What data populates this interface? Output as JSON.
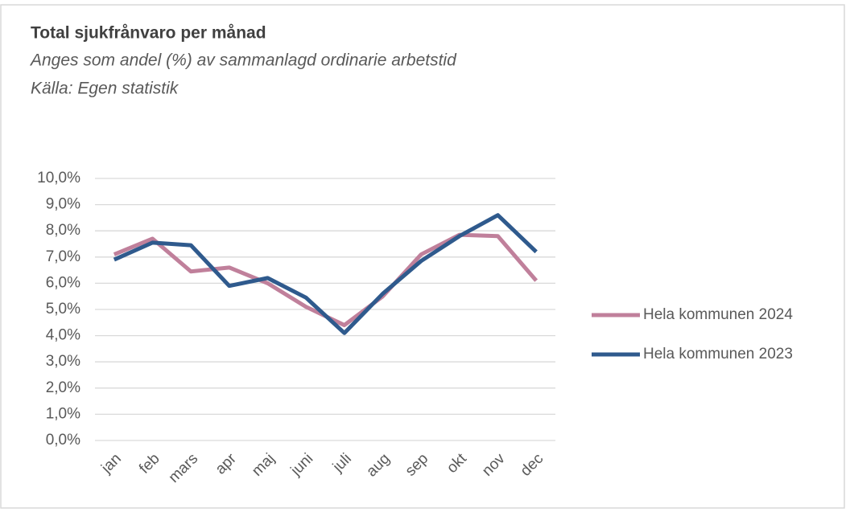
{
  "chart_data": {
    "type": "line",
    "title": "Total sjukfrånvaro  per månad",
    "subtitle": "Anges som andel (%) av sammanlagd ordinarie arbetstid",
    "source": "Källa: Egen statistik",
    "categories": [
      "jan",
      "feb",
      "mars",
      "apr",
      "maj",
      "juni",
      "juli",
      "aug",
      "sep",
      "okt",
      "nov",
      "dec"
    ],
    "series": [
      {
        "name": "Hela kommunen 2024",
        "color": "#c0809b",
        "values": [
          7.1,
          7.7,
          6.45,
          6.6,
          6.0,
          5.1,
          4.4,
          5.5,
          7.1,
          7.85,
          7.8,
          6.1
        ]
      },
      {
        "name": "Hela kommunen 2023",
        "color": "#2f5a8d",
        "values": [
          6.9,
          7.55,
          7.45,
          5.9,
          6.2,
          5.45,
          4.1,
          5.6,
          6.85,
          7.8,
          8.6,
          7.2
        ]
      }
    ],
    "ylim": [
      0,
      10
    ],
    "yticks": [
      {
        "value": 0,
        "label": "0,0%"
      },
      {
        "value": 1,
        "label": "1,0%"
      },
      {
        "value": 2,
        "label": "2,0%"
      },
      {
        "value": 3,
        "label": "3,0%"
      },
      {
        "value": 4,
        "label": "4,0%"
      },
      {
        "value": 5,
        "label": "5,0%"
      },
      {
        "value": 6,
        "label": "6,0%"
      },
      {
        "value": 7,
        "label": "7,0%"
      },
      {
        "value": 8,
        "label": "8,0%"
      },
      {
        "value": 9,
        "label": "9,0%"
      },
      {
        "value": 10,
        "label": "10,0%"
      }
    ],
    "grid": true,
    "legend": "right"
  }
}
